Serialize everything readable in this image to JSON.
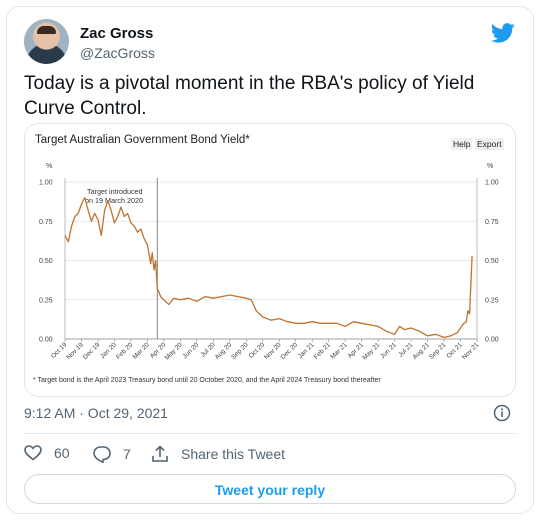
{
  "tweet": {
    "author_name": "Zac Gross",
    "handle": "@ZacGross",
    "text": "Today is a pivotal moment in the RBA's policy of Yield Curve Control.",
    "timestamp": "9:12 AM · Oct 29, 2021",
    "likes": "60",
    "replies": "7",
    "share_label": "Share this Tweet",
    "reply_button": "Tweet your reply"
  },
  "colors": {
    "twitter_blue": "#1d9bf0",
    "series": "#c0722f"
  },
  "icons": [
    "twitter-bird-icon",
    "info-icon",
    "heart-icon",
    "reply-icon",
    "share-icon"
  ],
  "chart_data": {
    "type": "line",
    "title": "Target Australian Government Bond Yield*",
    "buttons": [
      "Help",
      "Export"
    ],
    "unit_left": "%",
    "unit_right": "%",
    "ylim": [
      0,
      1
    ],
    "yticks": [
      "0.00",
      "0.25",
      "0.50",
      "0.75",
      "1.00"
    ],
    "x_ticks": [
      "Oct 19",
      "Nov 19",
      "Dec 19",
      "Jan 20",
      "Feb 20",
      "Mar 20",
      "Apr 20",
      "May 20",
      "Jun 20",
      "Jul 20",
      "Aug 20",
      "Sep 20",
      "Oct 20",
      "Nov 20",
      "Dec 20",
      "Jan 21",
      "Feb 21",
      "Mar 21",
      "Apr 21",
      "May 21",
      "Jun 21",
      "Jul 21",
      "Aug 21",
      "Sep 21",
      "Oct 21",
      "Nov 21"
    ],
    "annotation": "Target introduced on 19 March 2020",
    "marker_x": 5.6,
    "grid": true,
    "footnote": "* Target bond is the April 2023 Treasury bond until 20 October 2020, and the April 2024 Treasury bond thereafter",
    "series": [
      {
        "x": [
          0,
          0.2,
          0.4,
          0.6,
          0.8,
          1.0,
          1.2,
          1.4,
          1.6,
          1.8,
          2.0,
          2.2,
          2.4,
          2.6,
          2.8,
          3.0,
          3.2,
          3.4,
          3.6,
          3.8,
          4.0,
          4.2,
          4.4,
          4.6,
          4.8,
          5.0,
          5.2,
          5.3,
          5.4,
          5.5,
          5.6,
          5.7,
          5.8,
          6.0,
          6.3,
          6.6,
          7.0,
          7.5,
          8.0,
          8.5,
          9.0,
          9.5,
          10.0,
          10.5,
          11.0,
          11.3,
          11.6,
          12.0,
          12.5,
          13.0,
          13.5,
          14.0,
          14.5,
          15.0,
          15.5,
          16.0,
          16.5,
          17.0,
          17.5,
          18.0,
          18.5,
          19.0,
          19.5,
          20.0,
          20.3,
          20.6,
          21.0,
          21.5,
          22.0,
          22.5,
          23.0,
          23.4,
          23.8,
          24.0,
          24.2,
          24.35,
          24.45,
          24.55,
          24.7
        ],
        "values": [
          0.66,
          0.62,
          0.72,
          0.78,
          0.8,
          0.86,
          0.9,
          0.82,
          0.75,
          0.8,
          0.76,
          0.66,
          0.82,
          0.88,
          0.82,
          0.74,
          0.78,
          0.84,
          0.78,
          0.8,
          0.74,
          0.72,
          0.68,
          0.7,
          0.64,
          0.6,
          0.48,
          0.55,
          0.44,
          0.5,
          0.32,
          0.3,
          0.27,
          0.25,
          0.22,
          0.26,
          0.25,
          0.26,
          0.24,
          0.27,
          0.26,
          0.27,
          0.28,
          0.27,
          0.26,
          0.25,
          0.18,
          0.14,
          0.12,
          0.13,
          0.11,
          0.1,
          0.1,
          0.11,
          0.1,
          0.1,
          0.1,
          0.08,
          0.11,
          0.1,
          0.09,
          0.08,
          0.05,
          0.03,
          0.08,
          0.06,
          0.07,
          0.05,
          0.02,
          0.03,
          0.01,
          0.02,
          0.04,
          0.07,
          0.1,
          0.11,
          0.18,
          0.16,
          0.53
        ]
      }
    ]
  }
}
